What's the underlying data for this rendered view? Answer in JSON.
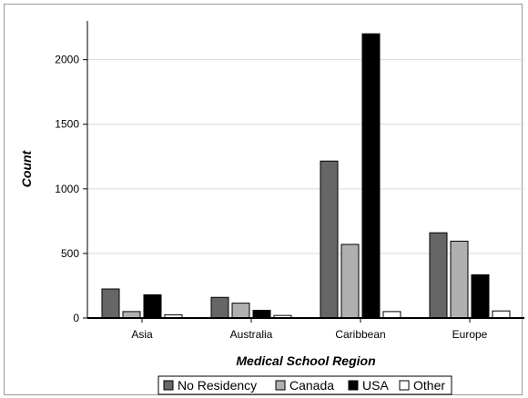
{
  "chart_data": {
    "type": "bar",
    "title": "",
    "xlabel": "Medical School Region",
    "ylabel": "Count",
    "categories": [
      "Asia",
      "Australia",
      "Caribbean",
      "Europe"
    ],
    "ylim": [
      0,
      2300
    ],
    "yticks": [
      0,
      500,
      1000,
      1500,
      2000
    ],
    "grid": true,
    "legend_position": "bottom",
    "series": [
      {
        "name": "No Residency",
        "color": "#666666",
        "values": [
          225,
          160,
          1215,
          660
        ]
      },
      {
        "name": "Canada",
        "color": "#b0b0b0",
        "values": [
          50,
          115,
          570,
          595
        ]
      },
      {
        "name": "USA",
        "color": "#000000",
        "values": [
          180,
          60,
          2200,
          335
        ]
      },
      {
        "name": "Other",
        "color": "#ffffff",
        "values": [
          25,
          20,
          50,
          55
        ]
      }
    ]
  }
}
